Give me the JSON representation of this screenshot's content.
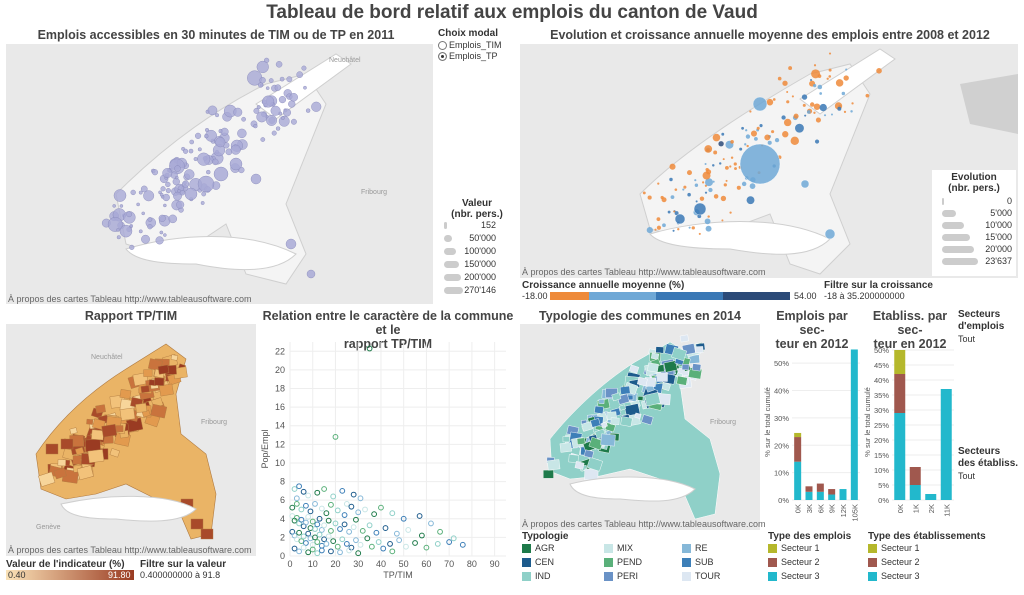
{
  "dashboard": {
    "title": "Tableau de bord relatif aux emplois du canton de Vaud",
    "map_credit": "À propos des cartes Tableau http://www.tableausoftware.com",
    "neuchatel": "Neuchâtel",
    "fribourg": "Fribourg",
    "geneve": "Genève"
  },
  "panel1": {
    "title": "Emplois accessibles en 30 minutes de TIM ou de TP en 2011",
    "choix_title": "Choix modal",
    "options": [
      "Emplois_TIM",
      "Emplois_TP"
    ],
    "selected_index": 1,
    "size_title": "Valeur\n(nbr. pers.)",
    "size_title_l1": "Valeur",
    "size_title_l2": "(nbr. pers.)",
    "sizes": [
      "152",
      "50'000",
      "100'000",
      "150'000",
      "200'000",
      "270'146"
    ],
    "bubble_color": "#a8a9d6"
  },
  "panel2": {
    "title": "Evolution et croissance annuelle moyenne des emplois entre 2008 et 2012",
    "evo_title_l1": "Evolution",
    "evo_title_l2": "(nbr. pers.)",
    "sizes": [
      "0",
      "5'000",
      "10'000",
      "15'000",
      "20'000",
      "23'637"
    ],
    "croissance_title": "Croissance annuelle moyenne (%)",
    "croissance_min": "-18.00",
    "croissance_max": "54.00",
    "croissance_colors": [
      "#ee8a3a",
      "#6fa8d6",
      "#3a78b5",
      "#2b4a78"
    ],
    "filtre_title": "Filtre sur la croissance",
    "filtre_range": "-18 à 35.200000000"
  },
  "panel3": {
    "title": "Rapport TP/TIM",
    "legend_title": "Valeur de l'indicateur (%)",
    "legend_min": "0.40",
    "legend_max": "91.80",
    "filtre_title": "Filtre sur la valeur",
    "filtre_range": "0.400000000 à 91.8",
    "color_low": "#fbe3b8",
    "color_high": "#9a3b22"
  },
  "panel4": {
    "title_l1": "Relation entre le caractère de la commune et le",
    "title_l2": "rapport TP/TIM"
  },
  "panel5": {
    "title": "Typologie des communes en 2014",
    "legend_title": "Typologie",
    "types": [
      {
        "code": "AGR",
        "color": "#1e7a4a"
      },
      {
        "code": "MIX",
        "color": "#c8e6e6"
      },
      {
        "code": "RE",
        "color": "#86b8d8"
      },
      {
        "code": "CEN",
        "color": "#1d5b8c"
      },
      {
        "code": "PEND",
        "color": "#5ab07a"
      },
      {
        "code": "SUB",
        "color": "#3d7fb8"
      },
      {
        "code": "IND",
        "color": "#8fd0c8"
      },
      {
        "code": "PERI",
        "color": "#6a92c6"
      },
      {
        "code": "TOUR",
        "color": "#dde7f2"
      }
    ]
  },
  "panel6": {
    "title_l1": "Emplois par sec-",
    "title_l2": "teur en 2012",
    "ylabel": "% sur le total cumulé",
    "legend_title": "Type des emplois",
    "legend": [
      "Secteur 1",
      "Secteur 2",
      "Secteur 3"
    ]
  },
  "panel7": {
    "title_l1": "Etabliss. par sec-",
    "title_l2": "teur en 2012",
    "ylabel": "% sur le total cumulé",
    "legend_title": "Type des établissements",
    "legend": [
      "Secteur 1",
      "Secteur 2",
      "Secteur 3"
    ]
  },
  "filters": {
    "secteurs_emplois_l1": "Secteurs",
    "secteurs_emplois_l2": "d'emplois",
    "secteurs_emplois_val": "Tout",
    "secteurs_etab_l1": "Secteurs",
    "secteurs_etab_l2": "des établiss.",
    "secteurs_etab_val": "Tout"
  },
  "sector_colors": [
    "#b5b82c",
    "#a0584e",
    "#22b8cc"
  ],
  "chart_data": [
    {
      "type": "scatter",
      "title": "Relation entre le caractère de la commune et le rapport TP/TIM",
      "xlabel": "TP/TIM",
      "ylabel": "Pop/Empl",
      "xlim": [
        0,
        95
      ],
      "ylim": [
        0,
        23
      ],
      "x_ticks": [
        0,
        10,
        20,
        30,
        40,
        50,
        60,
        70,
        80,
        90
      ],
      "y_ticks": [
        0,
        2,
        4,
        6,
        8,
        10,
        12,
        14,
        16,
        18,
        20,
        22
      ],
      "grid": true,
      "points": [
        [
          35,
          22.3
        ],
        [
          20,
          12.8
        ],
        [
          2,
          7.2
        ],
        [
          4,
          7.5
        ],
        [
          6,
          6.9
        ],
        [
          3,
          6.2
        ],
        [
          8,
          6.5
        ],
        [
          12,
          6.8
        ],
        [
          15,
          7.2
        ],
        [
          19,
          6.4
        ],
        [
          23,
          7.0
        ],
        [
          28,
          6.6
        ],
        [
          31,
          6.2
        ],
        [
          25,
          5.6
        ],
        [
          1,
          5.2
        ],
        [
          3,
          5.6
        ],
        [
          5,
          5.0
        ],
        [
          7,
          5.4
        ],
        [
          9,
          4.8
        ],
        [
          11,
          5.6
        ],
        [
          14,
          5.1
        ],
        [
          16,
          4.6
        ],
        [
          18,
          5.5
        ],
        [
          21,
          4.9
        ],
        [
          24,
          4.4
        ],
        [
          27,
          5.3
        ],
        [
          30,
          4.7
        ],
        [
          33,
          5.0
        ],
        [
          37,
          4.5
        ],
        [
          40,
          5.2
        ],
        [
          45,
          4.6
        ],
        [
          50,
          4.0
        ],
        [
          57,
          4.3
        ],
        [
          62,
          3.5
        ],
        [
          1,
          4.3
        ],
        [
          2,
          3.8
        ],
        [
          3,
          4.1
        ],
        [
          4,
          3.5
        ],
        [
          5,
          3.9
        ],
        [
          6,
          3.2
        ],
        [
          7,
          3.6
        ],
        [
          8,
          4.2
        ],
        [
          9,
          3.0
        ],
        [
          10,
          3.7
        ],
        [
          11,
          2.9
        ],
        [
          12,
          3.4
        ],
        [
          13,
          4.0
        ],
        [
          14,
          2.8
        ],
        [
          15,
          3.3
        ],
        [
          17,
          3.8
        ],
        [
          18,
          2.7
        ],
        [
          20,
          3.5
        ],
        [
          22,
          2.9
        ],
        [
          24,
          3.4
        ],
        [
          26,
          2.6
        ],
        [
          28,
          3.1
        ],
        [
          29,
          3.9
        ],
        [
          32,
          2.7
        ],
        [
          35,
          3.3
        ],
        [
          38,
          2.5
        ],
        [
          42,
          3.0
        ],
        [
          47,
          2.4
        ],
        [
          52,
          2.8
        ],
        [
          58,
          2.2
        ],
        [
          66,
          2.6
        ],
        [
          72,
          1.9
        ],
        [
          76,
          1.2
        ],
        [
          1,
          2.6
        ],
        [
          2,
          2.2
        ],
        [
          3,
          1.8
        ],
        [
          4,
          2.5
        ],
        [
          5,
          1.6
        ],
        [
          6,
          2.1
        ],
        [
          7,
          1.4
        ],
        [
          8,
          2.4
        ],
        [
          9,
          1.9
        ],
        [
          10,
          1.2
        ],
        [
          11,
          2.0
        ],
        [
          12,
          1.5
        ],
        [
          13,
          2.3
        ],
        [
          14,
          1.1
        ],
        [
          15,
          1.8
        ],
        [
          16,
          1.3
        ],
        [
          17,
          2.1
        ],
        [
          19,
          1.6
        ],
        [
          21,
          1.0
        ],
        [
          23,
          1.8
        ],
        [
          25,
          1.3
        ],
        [
          27,
          0.9
        ],
        [
          29,
          1.7
        ],
        [
          31,
          1.2
        ],
        [
          34,
          1.9
        ],
        [
          36,
          1.0
        ],
        [
          39,
          1.5
        ],
        [
          41,
          0.8
        ],
        [
          44,
          1.3
        ],
        [
          48,
          1.7
        ],
        [
          51,
          1.0
        ],
        [
          55,
          1.4
        ],
        [
          60,
          0.9
        ],
        [
          65,
          1.3
        ],
        [
          70,
          1.5
        ],
        [
          2,
          0.8
        ],
        [
          4,
          0.5
        ],
        [
          6,
          0.9
        ],
        [
          8,
          0.4
        ],
        [
          10,
          0.7
        ],
        [
          12,
          0.3
        ],
        [
          14,
          0.6
        ],
        [
          18,
          0.5
        ],
        [
          22,
          0.4
        ],
        [
          26,
          0.6
        ],
        [
          30,
          0.3
        ],
        [
          45,
          0.5
        ]
      ],
      "point_colors": [
        "#1e7a4a",
        "#5ab07a",
        "#8fd0c8",
        "#3d7fb8",
        "#1d5b8c",
        "#86b8d8",
        "#c8e6e6"
      ]
    },
    {
      "type": "bar",
      "title": "Emplois par secteur en 2012",
      "ylabel": "% sur le total cumulé",
      "categories": [
        "0K",
        "3K",
        "6K",
        "9K",
        "12K",
        "105K"
      ],
      "series": [
        {
          "name": "Secteur 3",
          "values": [
            14,
            3,
            3,
            2,
            4,
            55
          ]
        },
        {
          "name": "Secteur 2",
          "values": [
            9,
            2,
            3,
            2,
            0,
            0
          ]
        },
        {
          "name": "Secteur 1",
          "values": [
            1.5,
            0,
            0,
            0,
            0,
            0
          ]
        }
      ],
      "ylim": [
        0,
        57
      ],
      "y_ticks": [
        "0%",
        "10%",
        "20%",
        "30%",
        "40%",
        "50%"
      ]
    },
    {
      "type": "bar",
      "title": "Etabliss. par secteur en 2012",
      "ylabel": "% sur le total cumulé",
      "categories": [
        "0K",
        "1K",
        "2K",
        "11K"
      ],
      "series": [
        {
          "name": "Secteur 3",
          "values": [
            29,
            5,
            2,
            37
          ]
        },
        {
          "name": "Secteur 2",
          "values": [
            13,
            6,
            0,
            0
          ]
        },
        {
          "name": "Secteur 1",
          "values": [
            8,
            0,
            0,
            0
          ]
        }
      ],
      "ylim": [
        0,
        52
      ],
      "y_ticks": [
        "0%",
        "5%",
        "10%",
        "15%",
        "20%",
        "25%",
        "30%",
        "35%",
        "40%",
        "45%",
        "50%"
      ]
    }
  ]
}
